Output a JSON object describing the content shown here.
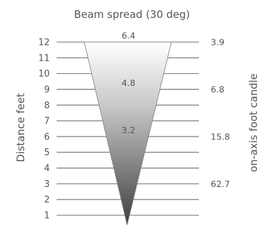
{
  "title": "Beam spread (30 deg)",
  "left_axis_label": "Distance feet",
  "right_axis_label": "on-axis foot candle",
  "distances": [
    "12",
    "11",
    "10",
    "9",
    "8",
    "7",
    "6",
    "5",
    "4",
    "3",
    "2",
    "1"
  ],
  "beam_spreads": [
    {
      "distance": 12,
      "label": "6.4"
    },
    {
      "distance": 9,
      "label": "4.8"
    },
    {
      "distance": 6,
      "label": "3.2"
    }
  ],
  "foot_candles": [
    {
      "distance": 12,
      "label": "3.9"
    },
    {
      "distance": 9,
      "label": "6.8"
    },
    {
      "distance": 6,
      "label": "15.8"
    },
    {
      "distance": 3,
      "label": "62.7"
    }
  ],
  "colors": {
    "beam_top": "#ffffff",
    "beam_bottom": "#4a4a4a",
    "text": "#555555",
    "lines": "#6e6e6e"
  }
}
